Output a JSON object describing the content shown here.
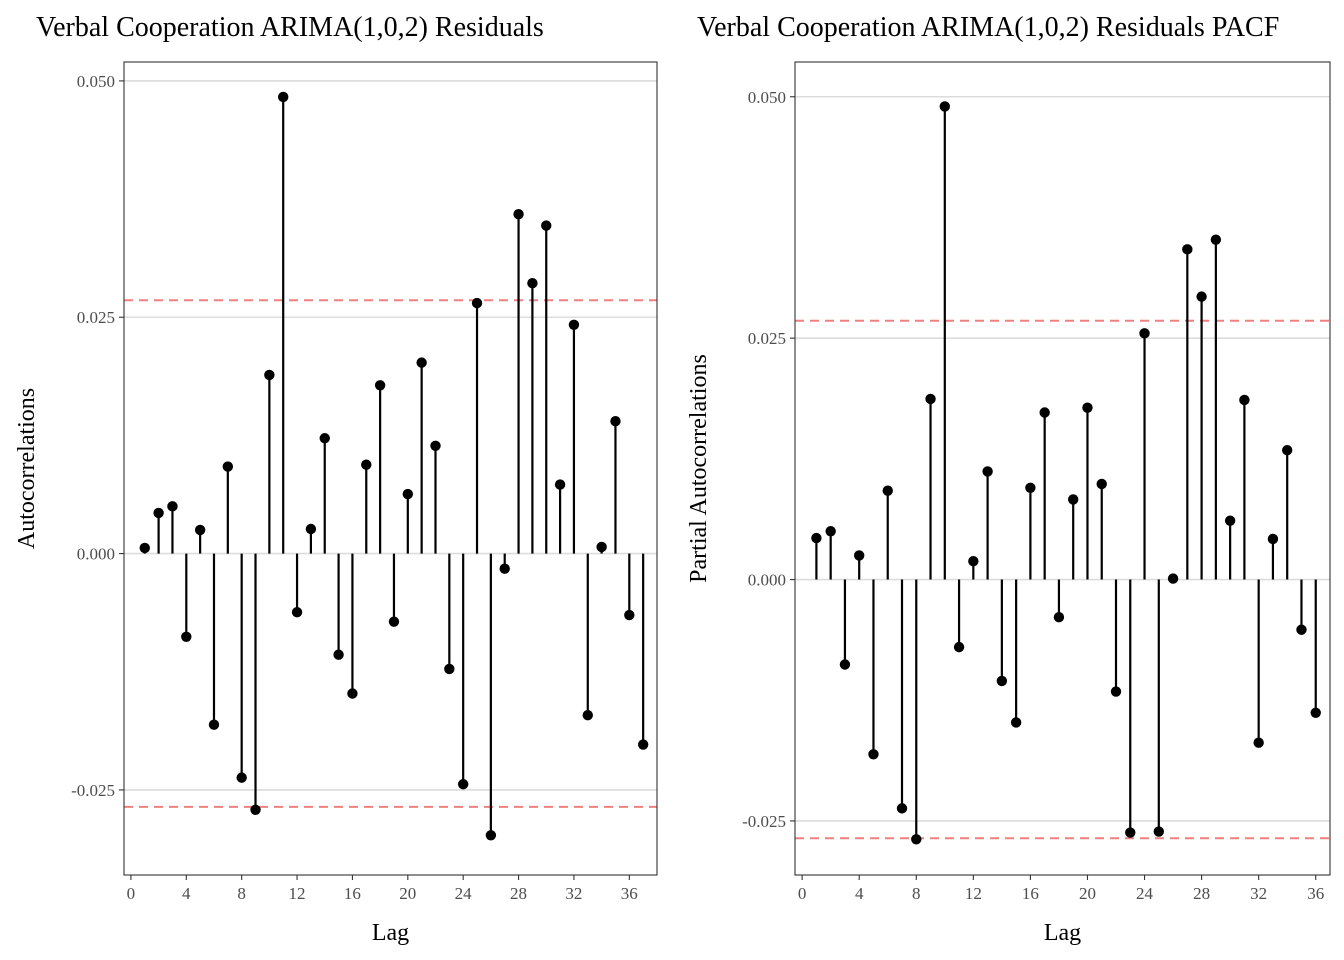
{
  "chart_data": [
    {
      "type": "lollipop",
      "title": "Verbal Cooperation ARIMA(1,0,2) Residuals",
      "xlabel": "Lag",
      "ylabel": "Autocorrelations",
      "xlim": [
        -0.5,
        38
      ],
      "ylim": [
        -0.034,
        0.052
      ],
      "xticks": [
        0,
        4,
        8,
        12,
        16,
        20,
        24,
        28,
        32,
        36
      ],
      "yticks": [
        -0.025,
        0,
        0.025,
        0.05
      ],
      "ytick_labels": [
        "-0.025",
        "0.000",
        "0.025",
        "0.050"
      ],
      "confidence_bound": 0.0268,
      "grid": true,
      "x": [
        1,
        2,
        3,
        4,
        5,
        6,
        7,
        8,
        9,
        10,
        11,
        12,
        13,
        14,
        15,
        16,
        17,
        18,
        19,
        20,
        21,
        22,
        23,
        24,
        25,
        26,
        27,
        28,
        29,
        30,
        31,
        32,
        33,
        34,
        35,
        36,
        37
      ],
      "values": [
        0.0006,
        0.0043,
        0.005,
        -0.0088,
        0.0025,
        -0.0181,
        0.0092,
        -0.0237,
        -0.0271,
        0.0189,
        0.0483,
        -0.0062,
        0.0026,
        0.0122,
        -0.0107,
        -0.0148,
        0.0094,
        0.0178,
        -0.0072,
        0.0063,
        0.0202,
        0.0114,
        -0.0122,
        -0.0244,
        0.0265,
        -0.0298,
        -0.0016,
        0.0359,
        0.0286,
        0.0347,
        0.0073,
        0.0242,
        -0.0171,
        0.0007,
        0.014,
        -0.0065,
        -0.0202
      ]
    },
    {
      "type": "lollipop",
      "title": "Verbal Cooperation ARIMA(1,0,2) Residuals PACF",
      "xlabel": "Lag",
      "ylabel": "Partial Autocorrelations",
      "xlim": [
        -0.5,
        37
      ],
      "ylim": [
        -0.0306,
        0.0536
      ],
      "xticks": [
        0,
        4,
        8,
        12,
        16,
        20,
        24,
        28,
        32,
        36
      ],
      "yticks": [
        -0.025,
        0,
        0.025,
        0.05
      ],
      "ytick_labels": [
        "-0.025",
        "0.000",
        "0.025",
        "0.050"
      ],
      "confidence_bound": 0.0268,
      "grid": true,
      "x": [
        1,
        2,
        3,
        4,
        5,
        6,
        7,
        8,
        9,
        10,
        11,
        12,
        13,
        14,
        15,
        16,
        17,
        18,
        19,
        20,
        21,
        22,
        23,
        24,
        25,
        26,
        27,
        28,
        29,
        30,
        31,
        32,
        33,
        34,
        35,
        36
      ],
      "values": [
        0.0043,
        0.005,
        -0.0088,
        0.0025,
        -0.0181,
        0.0092,
        -0.0237,
        -0.0269,
        0.0187,
        0.049,
        -0.007,
        0.0019,
        0.0112,
        -0.0105,
        -0.0148,
        0.0095,
        0.0173,
        -0.0039,
        0.0083,
        0.0178,
        0.0099,
        -0.0116,
        -0.0262,
        0.0255,
        -0.0261,
        0.0001,
        0.0342,
        0.0293,
        0.0352,
        0.0061,
        0.0186,
        -0.0169,
        0.0042,
        0.0134,
        -0.0052,
        -0.0138
      ]
    }
  ]
}
